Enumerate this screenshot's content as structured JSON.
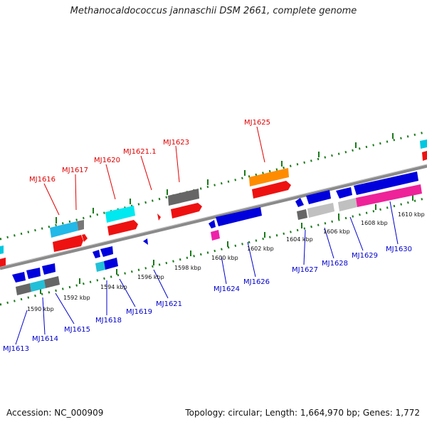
{
  "header": {
    "title": "Methanocaldococcus jannaschii DSM 2661, complete genome"
  },
  "footer": {
    "accession": "Accession: NC_000909",
    "summary": "Topology: circular; Length: 1,664,970 bp; Genes: 1,772"
  },
  "colors": {
    "forward_label": "#e00000",
    "reverse_label": "#0000cc",
    "backbone": "#8a8a8a",
    "tick": "#1a7a1a"
  },
  "scale_labels": [
    "1590 kbp",
    "1592 kbp",
    "1594 kbp",
    "1596 kbp",
    "1598 kbp",
    "1600 kbp",
    "1602 kbp",
    "1604 kbp",
    "1606 kbp",
    "1608 kbp",
    "1610 kbp"
  ],
  "gene_labels": {
    "forward": [
      "MJ1616",
      "MJ1617",
      "MJ1620",
      "MJ1621.1",
      "MJ1623",
      "MJ1625"
    ],
    "reverse": [
      "MJ1613",
      "MJ1614",
      "MJ1615",
      "MJ1618",
      "MJ1619",
      "MJ1621",
      "MJ1624",
      "MJ1626",
      "MJ1627",
      "MJ1628",
      "MJ1629",
      "MJ1630"
    ]
  }
}
